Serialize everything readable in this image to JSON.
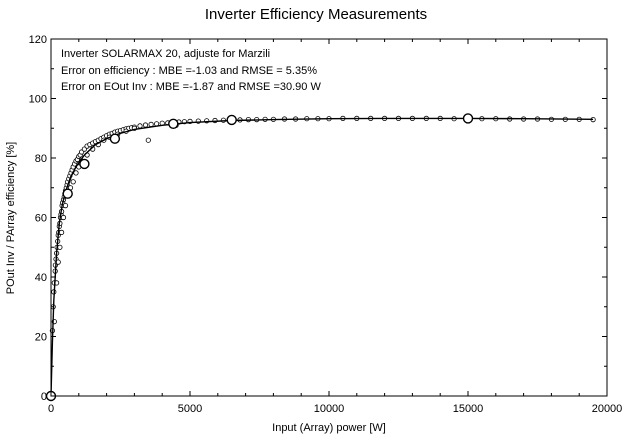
{
  "chart_data": {
    "type": "scatter",
    "title": "Inverter Efficiency Measurements",
    "xlabel": "Input  (Array)  power  [W]",
    "ylabel": "POut Inv / PArray  efficiency  [%]",
    "xlim": [
      0,
      20000
    ],
    "ylim": [
      0,
      120
    ],
    "xticks": [
      "0",
      "5000",
      "10000",
      "15000",
      "20000"
    ],
    "yticks": [
      "0",
      "20",
      "40",
      "60",
      "80",
      "100",
      "120"
    ],
    "grid": false,
    "annotations": [
      "Inverter  SOLARMAX 20, adjuste for  Marzili",
      "Error on efficiency :  MBE =-1.03 and  RMSE = 5.35%",
      "Error on EOut Inv : MBE =-1.87 and  RMSE =30.90 W"
    ],
    "series": [
      {
        "kind": "model-curve",
        "x": [
          0,
          50,
          100,
          200,
          300,
          400,
          500,
          700,
          900,
          1200,
          1600,
          2000,
          2500,
          3000,
          4000,
          5000,
          6500,
          8000,
          10000,
          12000,
          14000,
          15000,
          17000,
          19500
        ],
        "y": [
          0,
          18,
          32,
          48,
          58,
          64,
          68,
          73.5,
          77,
          81,
          84.5,
          86.5,
          88.3,
          89.6,
          91,
          91.9,
          92.6,
          92.9,
          93.2,
          93.3,
          93.3,
          93.3,
          93.2,
          93
        ]
      },
      {
        "kind": "reference-points",
        "x": [
          0,
          600,
          1200,
          2300,
          4400,
          6500,
          15000
        ],
        "y": [
          0,
          68,
          78,
          86.5,
          91.5,
          92.8,
          93.3
        ]
      },
      {
        "kind": "measurements",
        "x": [
          50,
          80,
          100,
          120,
          150,
          160,
          180,
          200,
          220,
          240,
          260,
          280,
          300,
          320,
          340,
          360,
          380,
          400,
          420,
          450,
          480,
          500,
          520,
          550,
          580,
          600,
          640,
          680,
          720,
          760,
          800,
          850,
          900,
          950,
          1000,
          1050,
          1100,
          1200,
          1300,
          1400,
          1500,
          1600,
          1700,
          1800,
          1900,
          2000,
          2100,
          2200,
          2300,
          2400,
          2500,
          2600,
          2700,
          2800,
          2900,
          3000,
          3200,
          3400,
          3600,
          3800,
          4000,
          4200,
          4400,
          4600,
          4800,
          5000,
          5300,
          5600,
          5900,
          6200,
          6500,
          6800,
          7100,
          7400,
          7700,
          8000,
          8400,
          8800,
          9200,
          9600,
          10000,
          10500,
          11000,
          11500,
          12000,
          12500,
          13000,
          13500,
          14000,
          14500,
          15000,
          15500,
          16000,
          16500,
          17000,
          17500,
          18000,
          18500,
          19000,
          19500,
          120,
          200,
          260,
          320,
          380,
          450,
          520,
          600,
          700,
          800,
          900,
          1000,
          1100,
          1300,
          1500,
          1700,
          1900,
          2100,
          2400,
          2700,
          3000,
          3500,
          4500
        ],
        "y": [
          22,
          30,
          35,
          38,
          42,
          44,
          46,
          48,
          50,
          52,
          54,
          55,
          57,
          58,
          60,
          61,
          62,
          64,
          65,
          66,
          67,
          68,
          69,
          70,
          71,
          72,
          73,
          74,
          75,
          76,
          77,
          78,
          79,
          79.5,
          80.5,
          81,
          82,
          83,
          84,
          84.5,
          85,
          85.5,
          86,
          86.5,
          87,
          87.5,
          88,
          88.3,
          88.7,
          89,
          89.2,
          89.5,
          89.8,
          90,
          90.2,
          90.4,
          90.8,
          91.1,
          91.3,
          91.5,
          91.7,
          91.8,
          92,
          92.1,
          92.2,
          92.3,
          92.4,
          92.5,
          92.6,
          92.7,
          92.8,
          92.8,
          92.9,
          92.9,
          93,
          93,
          93.1,
          93.1,
          93.2,
          93.2,
          93.2,
          93.3,
          93.3,
          93.3,
          93.3,
          93.3,
          93.3,
          93.3,
          93.3,
          93.2,
          93.2,
          93.2,
          93.2,
          93.1,
          93.1,
          93.1,
          93,
          93,
          93,
          92.9,
          25,
          38,
          45,
          50,
          55,
          60,
          64,
          68,
          70,
          72,
          75,
          77,
          79,
          81,
          83,
          84.5,
          86,
          87,
          88,
          89,
          90,
          86,
          91
        ]
      }
    ]
  }
}
